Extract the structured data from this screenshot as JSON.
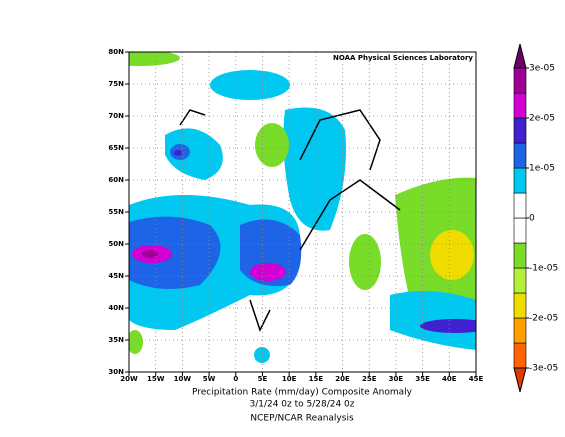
{
  "map": {
    "credit": "NOAA Physical Sciences Laboratory",
    "lat_labels": [
      "80N",
      "75N",
      "70N",
      "65N",
      "60N",
      "55N",
      "50N",
      "45N",
      "40N",
      "35N",
      "30N"
    ],
    "lon_labels": [
      "20W",
      "15W",
      "10W",
      "5W",
      "0",
      "5E",
      "10E",
      "15E",
      "20E",
      "25E",
      "30E",
      "35E",
      "40E",
      "45E"
    ],
    "caption": [
      "Precipitation Rate (mm/day)   Composite Anomaly",
      "3/1/24 0z  to 5/28/24 0z",
      "NCEP/NCAR Reanalysis"
    ]
  },
  "colorbar": {
    "lim": [
      -3e-05,
      3e-05
    ],
    "ticks": [
      {
        "value": 3e-05,
        "label": "3e-05"
      },
      {
        "value": 2e-05,
        "label": "2e-05"
      },
      {
        "value": 1e-05,
        "label": "1e-05"
      },
      0,
      {
        "value": -1e-05,
        "label": "-1e-05"
      },
      {
        "value": -2e-05,
        "label": "-2e-05"
      },
      {
        "value": -3e-05,
        "label": "-3e-05"
      }
    ],
    "colors": [
      "#ff6400",
      "#ffa000",
      "#f0dc00",
      "#b4f03c",
      "#78dc28",
      "#ffffff",
      "#ffffff",
      "#00c8f0",
      "#1e64e6",
      "#4020d0",
      "#d200d2",
      "#a00096"
    ],
    "over_color": "#6e006e",
    "under_color": "#e03c00"
  }
}
